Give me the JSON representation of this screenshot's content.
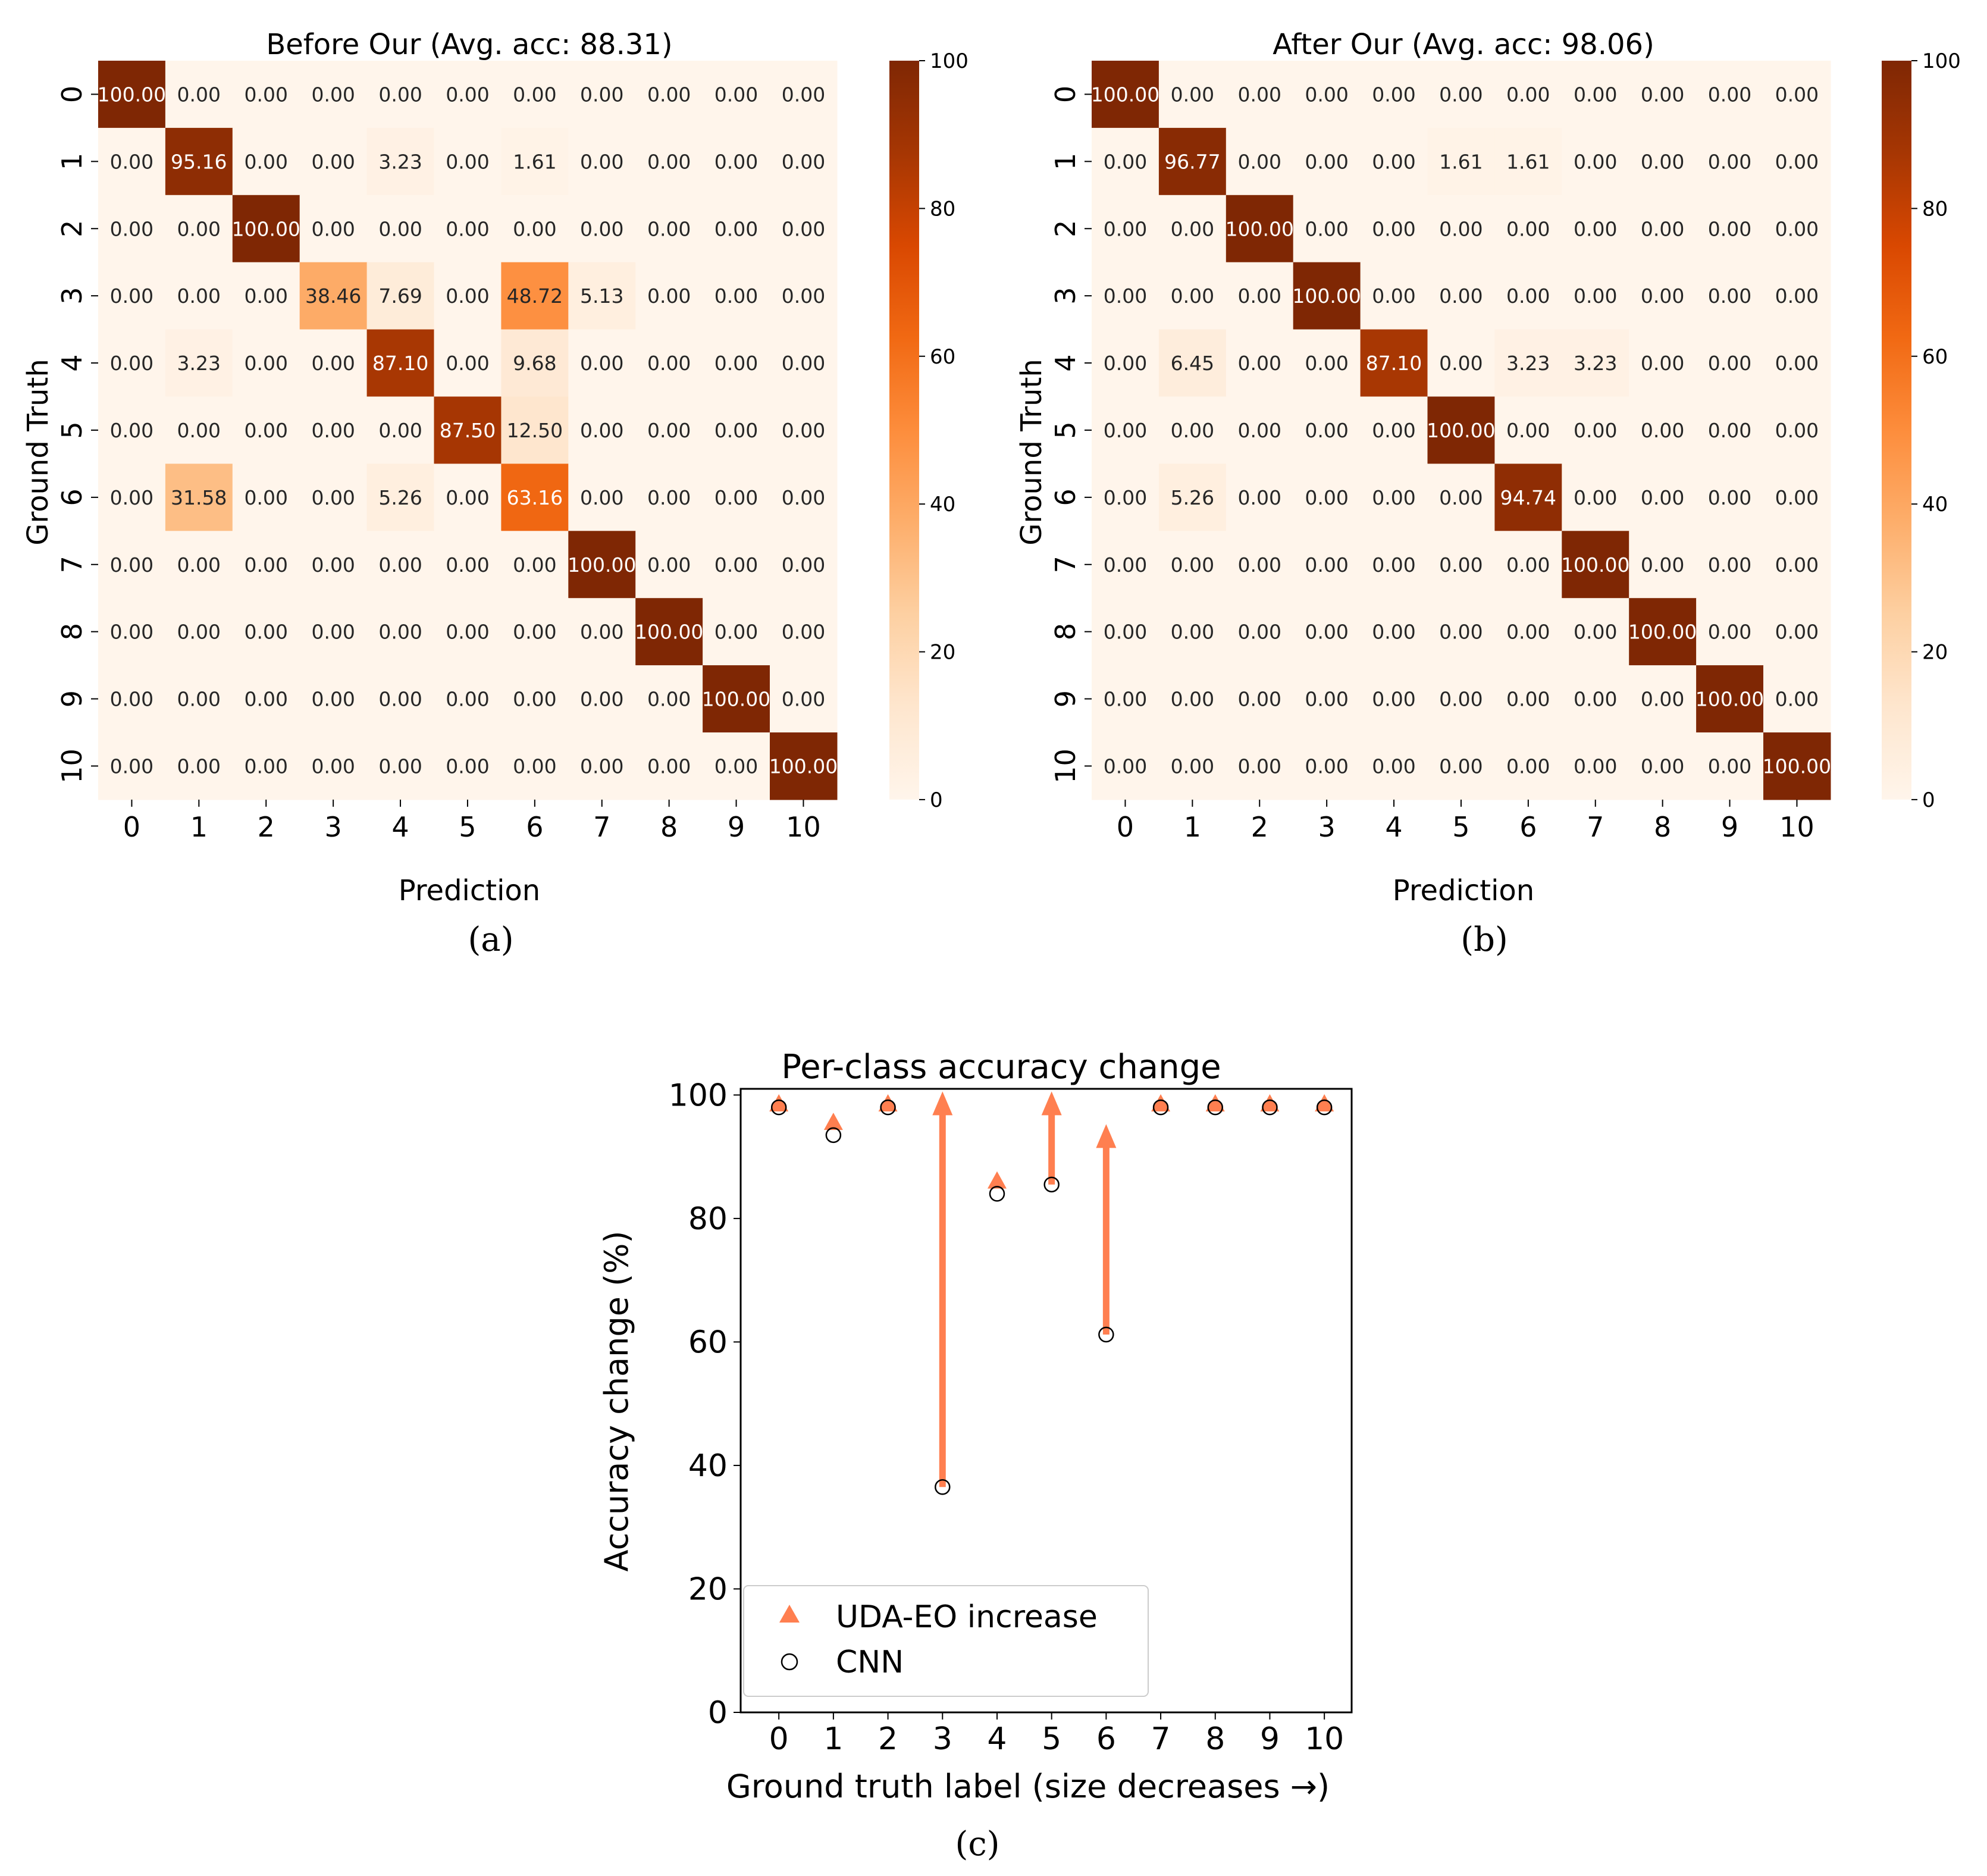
{
  "colormap": {
    "stops": [
      "#fff5eb",
      "#fee6ce",
      "#fdd0a2",
      "#fdae6b",
      "#fd8d3c",
      "#f16913",
      "#d94801",
      "#a63603",
      "#7f2704"
    ],
    "light_text": "#ffffff",
    "dark_text": "#262626",
    "colorbar_ticks": [
      "0",
      "20",
      "40",
      "60",
      "80",
      "100"
    ]
  },
  "accent_color": "#ff7f50",
  "chart_data": [
    {
      "type": "heatmap",
      "id": "a",
      "title": "Before Our (Avg. acc: 88.31)",
      "caption": "(a)",
      "xlabel": "Prediction",
      "ylabel": "Ground Truth",
      "x_ticks": [
        "0",
        "1",
        "2",
        "3",
        "4",
        "5",
        "6",
        "7",
        "8",
        "9",
        "10"
      ],
      "y_ticks": [
        "0",
        "1",
        "2",
        "3",
        "4",
        "5",
        "6",
        "7",
        "8",
        "9",
        "10"
      ],
      "vmin": 0,
      "vmax": 100,
      "values": [
        [
          100.0,
          0,
          0,
          0,
          0,
          0,
          0,
          0,
          0,
          0,
          0
        ],
        [
          0,
          95.16,
          0,
          0,
          3.23,
          0,
          1.61,
          0,
          0,
          0,
          0
        ],
        [
          0,
          0,
          100.0,
          0,
          0,
          0,
          0,
          0,
          0,
          0,
          0
        ],
        [
          0,
          0,
          0,
          38.46,
          7.69,
          0,
          48.72,
          5.13,
          0,
          0,
          0
        ],
        [
          0,
          3.23,
          0,
          0,
          87.1,
          0,
          9.68,
          0,
          0,
          0,
          0
        ],
        [
          0,
          0,
          0,
          0,
          0,
          87.5,
          12.5,
          0,
          0,
          0,
          0
        ],
        [
          0,
          31.58,
          0,
          0,
          5.26,
          0,
          63.16,
          0,
          0,
          0,
          0
        ],
        [
          0,
          0,
          0,
          0,
          0,
          0,
          0,
          100.0,
          0,
          0,
          0
        ],
        [
          0,
          0,
          0,
          0,
          0,
          0,
          0,
          0,
          100.0,
          0,
          0
        ],
        [
          0,
          0,
          0,
          0,
          0,
          0,
          0,
          0,
          0,
          100.0,
          0
        ],
        [
          0,
          0,
          0,
          0,
          0,
          0,
          0,
          0,
          0,
          0,
          100.0
        ]
      ],
      "labels": [
        [
          "100.00",
          "0.00",
          "0.00",
          "0.00",
          "0.00",
          "0.00",
          "0.00",
          "0.00",
          "0.00",
          "0.00",
          "0.00"
        ],
        [
          "0.00",
          "95.16",
          "0.00",
          "0.00",
          "3.23",
          "0.00",
          "1.61",
          "0.00",
          "0.00",
          "0.00",
          "0.00"
        ],
        [
          "0.00",
          "0.00",
          "100.00",
          "0.00",
          "0.00",
          "0.00",
          "0.00",
          "0.00",
          "0.00",
          "0.00",
          "0.00"
        ],
        [
          "0.00",
          "0.00",
          "0.00",
          "38.46",
          "7.69",
          "0.00",
          "48.72",
          "5.13",
          "0.00",
          "0.00",
          "0.00"
        ],
        [
          "0.00",
          "3.23",
          "0.00",
          "0.00",
          "87.10",
          "0.00",
          "9.68",
          "0.00",
          "0.00",
          "0.00",
          "0.00"
        ],
        [
          "0.00",
          "0.00",
          "0.00",
          "0.00",
          "0.00",
          "87.50",
          "12.50",
          "0.00",
          "0.00",
          "0.00",
          "0.00"
        ],
        [
          "0.00",
          "31.58",
          "0.00",
          "0.00",
          "5.26",
          "0.00",
          "63.16",
          "0.00",
          "0.00",
          "0.00",
          "0.00"
        ],
        [
          "0.00",
          "0.00",
          "0.00",
          "0.00",
          "0.00",
          "0.00",
          "0.00",
          "100.00",
          "0.00",
          "0.00",
          "0.00"
        ],
        [
          "0.00",
          "0.00",
          "0.00",
          "0.00",
          "0.00",
          "0.00",
          "0.00",
          "0.00",
          "100.00",
          "0.00",
          "0.00"
        ],
        [
          "0.00",
          "0.00",
          "0.00",
          "0.00",
          "0.00",
          "0.00",
          "0.00",
          "0.00",
          "0.00",
          "100.00",
          "0.00"
        ],
        [
          "0.00",
          "0.00",
          "0.00",
          "0.00",
          "0.00",
          "0.00",
          "0.00",
          "0.00",
          "0.00",
          "0.00",
          "100.00"
        ]
      ]
    },
    {
      "type": "heatmap",
      "id": "b",
      "title": "After Our (Avg. acc: 98.06)",
      "caption": "(b)",
      "xlabel": "Prediction",
      "ylabel": "Ground Truth",
      "x_ticks": [
        "0",
        "1",
        "2",
        "3",
        "4",
        "5",
        "6",
        "7",
        "8",
        "9",
        "10"
      ],
      "y_ticks": [
        "0",
        "1",
        "2",
        "3",
        "4",
        "5",
        "6",
        "7",
        "8",
        "9",
        "10"
      ],
      "vmin": 0,
      "vmax": 100,
      "values": [
        [
          100.0,
          0,
          0,
          0,
          0,
          0,
          0,
          0,
          0,
          0,
          0
        ],
        [
          0,
          96.77,
          0,
          0,
          0,
          1.61,
          1.61,
          0,
          0,
          0,
          0
        ],
        [
          0,
          0,
          100.0,
          0,
          0,
          0,
          0,
          0,
          0,
          0,
          0
        ],
        [
          0,
          0,
          0,
          100.0,
          0,
          0,
          0,
          0,
          0,
          0,
          0
        ],
        [
          0,
          6.45,
          0,
          0,
          87.1,
          0,
          3.23,
          3.23,
          0,
          0,
          0
        ],
        [
          0,
          0,
          0,
          0,
          0,
          100.0,
          0,
          0,
          0,
          0,
          0
        ],
        [
          0,
          5.26,
          0,
          0,
          0,
          0,
          94.74,
          0,
          0,
          0,
          0
        ],
        [
          0,
          0,
          0,
          0,
          0,
          0,
          0,
          100.0,
          0,
          0,
          0
        ],
        [
          0,
          0,
          0,
          0,
          0,
          0,
          0,
          0,
          100.0,
          0,
          0
        ],
        [
          0,
          0,
          0,
          0,
          0,
          0,
          0,
          0,
          0,
          100.0,
          0
        ],
        [
          0,
          0,
          0,
          0,
          0,
          0,
          0,
          0,
          0,
          0,
          100.0
        ]
      ],
      "labels": [
        [
          "100.00",
          "0.00",
          "0.00",
          "0.00",
          "0.00",
          "0.00",
          "0.00",
          "0.00",
          "0.00",
          "0.00",
          "0.00"
        ],
        [
          "0.00",
          "96.77",
          "0.00",
          "0.00",
          "0.00",
          "1.61",
          "1.61",
          "0.00",
          "0.00",
          "0.00",
          "0.00"
        ],
        [
          "0.00",
          "0.00",
          "100.00",
          "0.00",
          "0.00",
          "0.00",
          "0.00",
          "0.00",
          "0.00",
          "0.00",
          "0.00"
        ],
        [
          "0.00",
          "0.00",
          "0.00",
          "100.00",
          "0.00",
          "0.00",
          "0.00",
          "0.00",
          "0.00",
          "0.00",
          "0.00"
        ],
        [
          "0.00",
          "6.45",
          "0.00",
          "0.00",
          "87.10",
          "0.00",
          "3.23",
          "3.23",
          "0.00",
          "0.00",
          "0.00"
        ],
        [
          "0.00",
          "0.00",
          "0.00",
          "0.00",
          "0.00",
          "100.00",
          "0.00",
          "0.00",
          "0.00",
          "0.00",
          "0.00"
        ],
        [
          "0.00",
          "5.26",
          "0.00",
          "0.00",
          "0.00",
          "0.00",
          "94.74",
          "0.00",
          "0.00",
          "0.00",
          "0.00"
        ],
        [
          "0.00",
          "0.00",
          "0.00",
          "0.00",
          "0.00",
          "0.00",
          "0.00",
          "100.00",
          "0.00",
          "0.00",
          "0.00"
        ],
        [
          "0.00",
          "0.00",
          "0.00",
          "0.00",
          "0.00",
          "0.00",
          "0.00",
          "0.00",
          "100.00",
          "0.00",
          "0.00"
        ],
        [
          "0.00",
          "0.00",
          "0.00",
          "0.00",
          "0.00",
          "0.00",
          "0.00",
          "0.00",
          "0.00",
          "100.00",
          "0.00"
        ],
        [
          "0.00",
          "0.00",
          "0.00",
          "0.00",
          "0.00",
          "0.00",
          "0.00",
          "0.00",
          "0.00",
          "0.00",
          "100.00"
        ]
      ]
    },
    {
      "type": "scatter",
      "id": "c",
      "title": "Per-class accuracy change",
      "caption": "(c)",
      "xlabel": "Ground truth label (size decreases →)",
      "ylabel": "Accuracy change (%)",
      "x": [
        0,
        1,
        2,
        3,
        4,
        5,
        6,
        7,
        8,
        9,
        10
      ],
      "x_ticks": [
        "0",
        "1",
        "2",
        "3",
        "4",
        "5",
        "6",
        "7",
        "8",
        "9",
        "10"
      ],
      "y_ticks": [
        "0",
        "20",
        "40",
        "60",
        "80",
        "100"
      ],
      "ylim": [
        0,
        101
      ],
      "xlim": [
        -0.7,
        10.5
      ],
      "series": [
        {
          "name": "CNN",
          "marker": "open-circle",
          "values": [
            98,
            93.5,
            98,
            36.5,
            84,
            85.5,
            61.2,
            98,
            98,
            98,
            98
          ]
        },
        {
          "name": "UDA-EO increase",
          "marker": "triangle",
          "values": [
            98.5,
            95.5,
            98.5,
            100,
            86,
            100,
            94.7,
            98.5,
            98.5,
            98.5,
            98.5
          ]
        }
      ],
      "arrows": [
        {
          "x": 3,
          "from": 36.5,
          "to": 100
        },
        {
          "x": 5,
          "from": 85.5,
          "to": 100
        },
        {
          "x": 6,
          "from": 61.2,
          "to": 94.7
        }
      ],
      "legend": {
        "position": "lower-left",
        "entries": [
          "UDA-EO increase",
          "CNN"
        ]
      }
    }
  ]
}
